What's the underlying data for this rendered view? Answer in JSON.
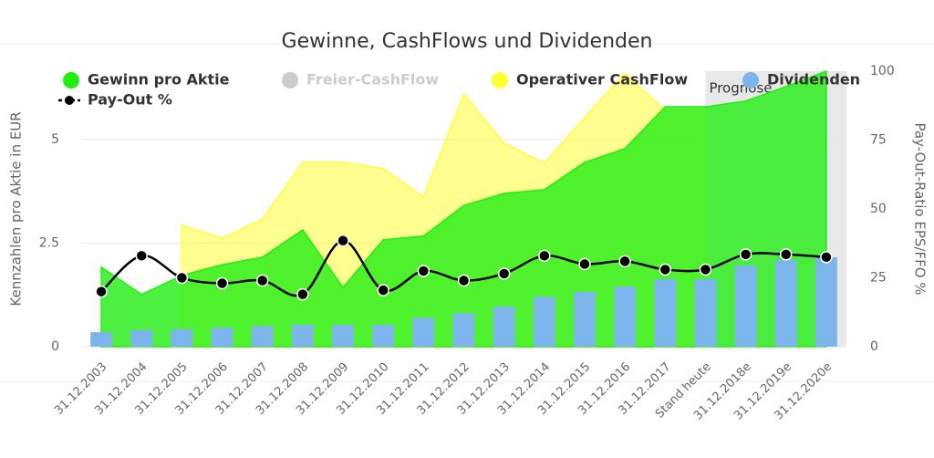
{
  "chart_data": {
    "type": "combo",
    "title": "Gewinne, CashFlows und Dividenden",
    "y_label": "Kennzahlen pro Aktie in EUR",
    "y2_label": "Pay-Out-Ratio EPS/FFO %",
    "categories": [
      "31.12.2003",
      "31.12.2004",
      "31.12.2005",
      "31.12.2006",
      "31.12.2007",
      "31.12.2008",
      "31.12.2009",
      "31.12.2010",
      "31.12.2011",
      "31.12.2012",
      "31.12.2013",
      "31.12.2014",
      "31.12.2015",
      "31.12.2016",
      "31.12.2017",
      "Stand heute",
      "31.12.2018e",
      "31.12.2019e",
      "31.12.2020e"
    ],
    "ylim": [
      0,
      6.65
    ],
    "yticks": [
      0,
      2.5,
      5
    ],
    "y2lim": [
      0,
      100
    ],
    "y2ticks": [
      0,
      25,
      50,
      75,
      100
    ],
    "grid": true,
    "plot_band_from": "Stand heute",
    "plot_band_label": "Prognose",
    "series": [
      {
        "name": "Gewinn pro Aktie",
        "kind": "area",
        "color": "#22ee11",
        "values": [
          1.92,
          1.26,
          1.72,
          1.98,
          2.16,
          2.82,
          1.43,
          2.58,
          2.67,
          3.41,
          3.7,
          3.79,
          4.45,
          4.78,
          5.79,
          5.79,
          5.93,
          6.28,
          6.65
        ]
      },
      {
        "name": "Freier-CashFlow",
        "kind": "area",
        "color": "#cccccc",
        "visible": false,
        "values": [
          null,
          null,
          null,
          null,
          null,
          null,
          null,
          null,
          null,
          null,
          null,
          null,
          null,
          null,
          null,
          null,
          null,
          null,
          null
        ]
      },
      {
        "name": "Operativer CashFlow",
        "kind": "area",
        "color": "#ffff33",
        "values": [
          null,
          null,
          2.93,
          2.62,
          3.08,
          4.45,
          4.45,
          4.3,
          3.61,
          6.1,
          4.91,
          4.43,
          5.53,
          6.6,
          5.7,
          5.7,
          null,
          null,
          null
        ]
      },
      {
        "name": "Dividenden",
        "kind": "column",
        "color": "#7cb5ec",
        "values": [
          0.35,
          0.4,
          0.42,
          0.46,
          0.5,
          0.53,
          0.53,
          0.53,
          0.7,
          0.81,
          0.97,
          1.21,
          1.32,
          1.45,
          1.63,
          1.63,
          1.96,
          2.09,
          2.16
        ]
      },
      {
        "name": "Pay-Out %",
        "kind": "line",
        "axis": "y2",
        "color": "#000000",
        "values": [
          20,
          33,
          25,
          23,
          24,
          19,
          38.5,
          20.5,
          27.5,
          24,
          26.5,
          33,
          30,
          31,
          28,
          28,
          33.5,
          33.5,
          32.5
        ]
      }
    ]
  }
}
